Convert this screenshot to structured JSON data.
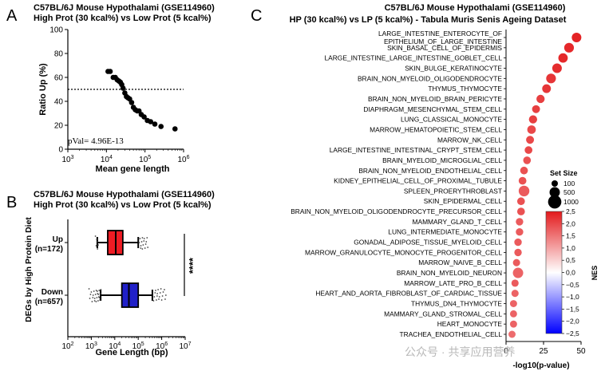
{
  "panels": {
    "A": {
      "letter": "A",
      "title_line1": "C57BL/6J Mouse Hypothalami (GSE114960)",
      "title_line2": "High Prot (30 kcal%) vs Low Prot (5 kcal%)",
      "pval_label": "pVal= 4.96E-13"
    },
    "B": {
      "letter": "B",
      "title_line1": "C57BL/6J Mouse Hypothalami (GSE114960)",
      "title_line2": "High Prot (30 kcal%) vs Low Prot (5 kcal%)",
      "significance": "****"
    },
    "C": {
      "letter": "C",
      "title_line1": "C57BL/6J Mouse Hypothalami (GSE114960)",
      "title_line2": "HP (30 kcal%) vs LP (5 kcal%) - Tabula Muris Senis Ageing Dataset",
      "size_legend_title": "Set Size",
      "size_legend": [
        {
          "label": "100",
          "size": 100
        },
        {
          "label": "500",
          "size": 500
        },
        {
          "label": "1000",
          "size": 1000
        }
      ],
      "colorbar_title": "NES",
      "colorbar_ticks": [
        "2,5",
        "2,0",
        "1,5",
        "1,0",
        "0,5",
        "0,0",
        "−0,5",
        "−1,0",
        "−1,5",
        "−2,0",
        "−2,5"
      ],
      "watermark": "公众号 · 共享应用营养"
    }
  },
  "chart_data": [
    {
      "type": "scatter",
      "xlabel": "Mean gene length",
      "ylabel": "Ratio Up (%)",
      "x_scale": "log",
      "xlim": [
        1000,
        1000000
      ],
      "ylim": [
        0,
        100
      ],
      "x_ticks": [
        {
          "v": 1000,
          "base": "10",
          "exp": "3"
        },
        {
          "v": 10000,
          "base": "10",
          "exp": "4"
        },
        {
          "v": 100000,
          "base": "10",
          "exp": "5"
        },
        {
          "v": 1000000,
          "base": "10",
          "exp": "6"
        }
      ],
      "y_ticks": [
        0,
        20,
        40,
        60,
        80,
        100
      ],
      "reference_line_y": 50,
      "points": [
        {
          "x": 11000,
          "y": 65
        },
        {
          "x": 12500,
          "y": 65
        },
        {
          "x": 15000,
          "y": 60
        },
        {
          "x": 17000,
          "y": 60
        },
        {
          "x": 19000,
          "y": 58
        },
        {
          "x": 21000,
          "y": 57
        },
        {
          "x": 23000,
          "y": 56
        },
        {
          "x": 25000,
          "y": 54
        },
        {
          "x": 27000,
          "y": 51
        },
        {
          "x": 30000,
          "y": 47
        },
        {
          "x": 33000,
          "y": 44
        },
        {
          "x": 36000,
          "y": 43
        },
        {
          "x": 40000,
          "y": 42
        },
        {
          "x": 45000,
          "y": 39
        },
        {
          "x": 50000,
          "y": 35
        },
        {
          "x": 56000,
          "y": 33
        },
        {
          "x": 63000,
          "y": 32
        },
        {
          "x": 70000,
          "y": 32
        },
        {
          "x": 80000,
          "y": 29
        },
        {
          "x": 95000,
          "y": 27
        },
        {
          "x": 115000,
          "y": 24
        },
        {
          "x": 140000,
          "y": 23
        },
        {
          "x": 180000,
          "y": 21
        },
        {
          "x": 260000,
          "y": 19
        },
        {
          "x": 600000,
          "y": 17
        }
      ]
    },
    {
      "type": "box",
      "xlabel": "Gene Length (bp)",
      "ylabel": "DEGs by High Protein Diet",
      "x_scale": "log",
      "xlim": [
        100,
        10000000
      ],
      "x_ticks": [
        {
          "v": 100,
          "base": "10",
          "exp": "2"
        },
        {
          "v": 1000,
          "base": "10",
          "exp": "3"
        },
        {
          "v": 10000,
          "base": "10",
          "exp": "4"
        },
        {
          "v": 100000,
          "base": "10",
          "exp": "5"
        },
        {
          "v": 1000000,
          "base": "10",
          "exp": "6"
        },
        {
          "v": 10000000,
          "base": "10",
          "exp": "7"
        }
      ],
      "series": [
        {
          "name": "Up",
          "n_label": "(n=172)",
          "color": "#ee1c24",
          "whisker_low": 1800,
          "q1": 5000,
          "median": 11000,
          "q3": 22000,
          "whisker_high": 100000,
          "outliers_low": [
            1500,
            1700
          ],
          "outliers_high": [
            110000,
            130000,
            150000,
            180000,
            220000
          ]
        },
        {
          "name": "Down",
          "n_label": "(n=657)",
          "color": "#2020c8",
          "whisker_low": 2500,
          "q1": 20000,
          "median": 40000,
          "q3": 100000,
          "whisker_high": 400000,
          "outliers_low": [
            800,
            1000,
            1200,
            1400,
            1600,
            1800,
            2000,
            2200
          ],
          "outliers_high": [
            450000,
            550000,
            650000,
            800000,
            1000000,
            1300000
          ]
        }
      ]
    },
    {
      "type": "dot",
      "xlabel": "-log10(p-value)",
      "xlim": [
        0,
        50
      ],
      "x_ticks": [
        0,
        25,
        50
      ],
      "nes_range": [
        -2.5,
        2.5
      ],
      "rows": [
        {
          "label1": "LARGE_INTESTINE_ENTEROCYTE_OF",
          "label2": "EPITHELIUM_OF_LARGE_INTESTINE",
          "x": 47,
          "nes": 2.4,
          "size": 400
        },
        {
          "label1": "SKIN_BASAL_CELL_OF_EPIDERMIS",
          "x": 42,
          "nes": 2.35,
          "size": 420
        },
        {
          "label1": "LARGE_INTESTINE_LARGE_INTESTINE_GOBLET_CELL",
          "x": 38,
          "nes": 2.35,
          "size": 380
        },
        {
          "label1": "SKIN_BULGE_KERATINOCYTE",
          "x": 34,
          "nes": 2.3,
          "size": 400
        },
        {
          "label1": "BRAIN_NON_MYELOID_OLIGODENDROCYTE",
          "x": 30,
          "nes": 2.2,
          "size": 420
        },
        {
          "label1": "THYMUS_THYMOCYTE",
          "x": 27,
          "nes": 2.2,
          "size": 300
        },
        {
          "label1": "BRAIN_NON_MYELOID_BRAIN_PERICYTE",
          "x": 23,
          "nes": 2.1,
          "size": 250
        },
        {
          "label1": "DIAPHRAGM_MESENCHYMAL_STEM_CELL",
          "x": 20,
          "nes": 2.1,
          "size": 220
        },
        {
          "label1": "LUNG_CLASSICAL_MONOCYTE",
          "x": 18,
          "nes": 2.1,
          "size": 250
        },
        {
          "label1": "MARROW_HEMATOPOIETIC_STEM_CELL",
          "x": 17,
          "nes": 2.0,
          "size": 280
        },
        {
          "label1": "MARROW_NK_CELL",
          "x": 16,
          "nes": 2.0,
          "size": 220
        },
        {
          "label1": "LARGE_INTESTINE_INTESTINAL_CRYPT_STEM_CELL",
          "x": 15,
          "nes": 2.0,
          "size": 200
        },
        {
          "label1": "BRAIN_MYELOID_MICROGLIAL_CELL",
          "x": 14,
          "nes": 1.9,
          "size": 200
        },
        {
          "label1": "BRAIN_NON_MYELOID_ENDOTHELIAL_CELL",
          "x": 12,
          "nes": 1.9,
          "size": 200
        },
        {
          "label1": "KIDNEY_EPITHELIAL_CELL_OF_PROXIMAL_TUBULE",
          "x": 11,
          "nes": 1.9,
          "size": 200
        },
        {
          "label1": "SPLEEN_PROERYTHROBLAST",
          "x": 12,
          "nes": 1.8,
          "size": 550
        },
        {
          "label1": "SKIN_EPIDERMAL_CELL",
          "x": 10,
          "nes": 1.9,
          "size": 200
        },
        {
          "label1": "BRAIN_NON_MYELOID_OLIGODENDROCYTE_PRECURSOR_CELL",
          "x": 10,
          "nes": 1.9,
          "size": 200
        },
        {
          "label1": "MAMMARY_GLAND_T_CELL",
          "x": 9,
          "nes": 1.8,
          "size": 180
        },
        {
          "label1": "LUNG_INTERMEDIATE_MONOCYTE",
          "x": 9,
          "nes": 1.8,
          "size": 180
        },
        {
          "label1": "GONADAL_ADIPOSE_TISSUE_MYELOID_CELL",
          "x": 8,
          "nes": 1.8,
          "size": 180
        },
        {
          "label1": "MARROW_GRANULOCYTE_MONOCYTE_PROGENITOR_CELL",
          "x": 8,
          "nes": 1.8,
          "size": 180
        },
        {
          "label1": "MARROW_NAIVE_B_CELL",
          "x": 7,
          "nes": 1.8,
          "size": 160
        },
        {
          "label1": "BRAIN_NON_MYELOID_NEURON",
          "x": 8,
          "nes": 1.7,
          "size": 500
        },
        {
          "label1": "MARROW_LATE_PRO_B_CELL",
          "x": 6,
          "nes": 1.8,
          "size": 160
        },
        {
          "label1": "HEART_AND_AORTA_FIBROBLAST_OF_CARDIAC_TISSUE",
          "x": 6,
          "nes": 1.7,
          "size": 160
        },
        {
          "label1": "THYMUS_DN4_THYMOCYTE",
          "x": 5,
          "nes": 1.7,
          "size": 150
        },
        {
          "label1": "MAMMARY_GLAND_STROMAL_CELL",
          "x": 5,
          "nes": 1.7,
          "size": 150
        },
        {
          "label1": "HEART_MONOCYTE",
          "x": 5,
          "nes": 1.7,
          "size": 150
        },
        {
          "label1": "TRACHEA_ENDOTHELIAL_CELL",
          "x": 4,
          "nes": 1.6,
          "size": 150
        }
      ]
    }
  ]
}
